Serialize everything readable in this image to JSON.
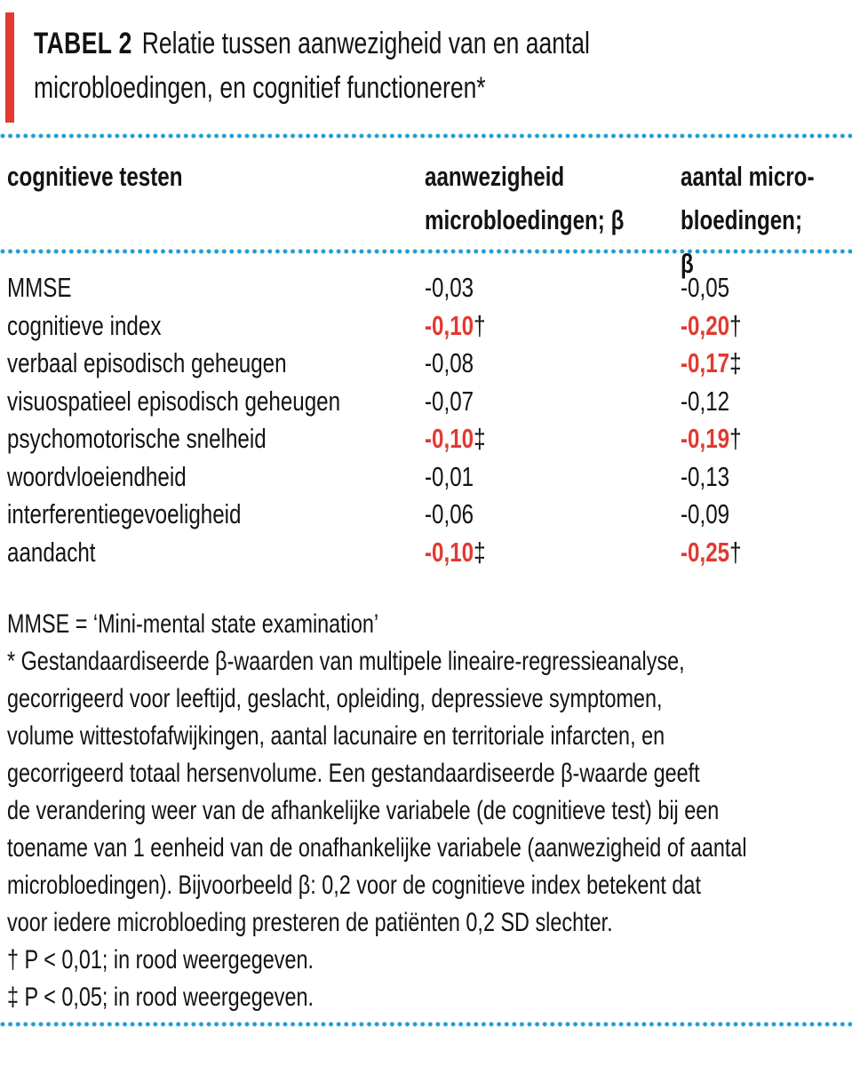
{
  "title": {
    "label": "TABEL 2",
    "text": "Relatie tussen aanwezigheid van en aantal microbloedingen, en cognitief functioneren*"
  },
  "colors": {
    "accent_red": "#e23a30",
    "dotted_rule_blue": "#1f9ed2",
    "text_black": "#131313",
    "significant_value_red": "#e23a30"
  },
  "table": {
    "col_headers": [
      "cognitieve testen",
      "aanwezigheid\nmicrobloedingen; β",
      "aantal micro-\nbloedingen; β"
    ],
    "rows": [
      {
        "test": "MMSE",
        "presence": "-0,03",
        "presence_marker": "",
        "presence_sig": false,
        "count": "-0,05",
        "count_marker": "",
        "count_sig": false
      },
      {
        "test": "cognitieve index",
        "presence": "-0,10",
        "presence_marker": "†",
        "presence_sig": true,
        "count": "-0,20",
        "count_marker": "†",
        "count_sig": true
      },
      {
        "test": "verbaal episodisch geheugen",
        "presence": "-0,08",
        "presence_marker": "",
        "presence_sig": false,
        "count": "-0,17",
        "count_marker": "‡",
        "count_sig": true
      },
      {
        "test": "visuospatieel episodisch geheugen",
        "presence": "-0,07",
        "presence_marker": "",
        "presence_sig": false,
        "count": "-0,12",
        "count_marker": "",
        "count_sig": false
      },
      {
        "test": "psychomotorische snelheid",
        "presence": "-0,10",
        "presence_marker": "‡",
        "presence_sig": true,
        "count": "-0,19",
        "count_marker": "†",
        "count_sig": true
      },
      {
        "test": "woordvloeiendheid",
        "presence": "-0,01",
        "presence_marker": "",
        "presence_sig": false,
        "count": "-0,13",
        "count_marker": "",
        "count_sig": false
      },
      {
        "test": "interferentiegevoeligheid",
        "presence": "-0,06",
        "presence_marker": "",
        "presence_sig": false,
        "count": "-0,09",
        "count_marker": "",
        "count_sig": false
      },
      {
        "test": "aandacht",
        "presence": "-0,10",
        "presence_marker": "‡",
        "presence_sig": true,
        "count": "-0,25",
        "count_marker": "†",
        "count_sig": true
      }
    ]
  },
  "footnotes": {
    "lines": [
      "MMSE = ‘Mini-mental state examination’",
      "* Gestandaardiseerde β-waarden van multipele lineaire-regressieanalyse,",
      "gecorrigeerd voor leeftijd, geslacht, opleiding, depressieve symptomen,",
      "volume wittestofafwijkingen, aantal lacunaire en territoriale infarcten, en",
      "gecorrigeerd totaal hersenvolume. Een gestandaardiseerde β-waarde geeft",
      "de verandering weer van de afhankelijke variabele (de cognitieve test) bij een",
      "toename van 1 eenheid van de onafhankelijke variabele (aanwezigheid of aantal",
      "microbloedingen). Bijvoorbeeld β: 0,2 voor de cognitieve index betekent dat",
      "voor iedere microbloeding presteren de patiënten 0,2 SD slechter.",
      "† P < 0,01; in rood weergegeven.",
      "‡ P < 0,05; in rood weergegeven."
    ]
  }
}
